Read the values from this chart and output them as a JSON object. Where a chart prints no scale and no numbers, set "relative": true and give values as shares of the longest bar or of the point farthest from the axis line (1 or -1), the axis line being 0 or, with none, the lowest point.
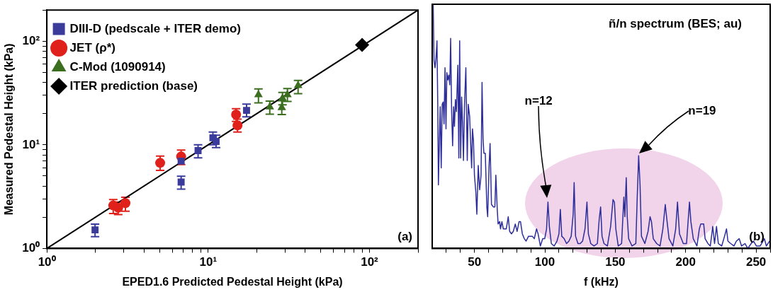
{
  "chart_data": [
    {
      "type": "scatter",
      "xlabel": "EPED1.6 Predicted Pedestal Height (kPa)",
      "ylabel": "Measured Pedestal Height (kPa)",
      "log": "xy",
      "xlim": [
        1,
        200
      ],
      "ylim": [
        1,
        200
      ],
      "xticks": [
        {
          "value": 1,
          "label": "10⁰"
        },
        {
          "value": 2,
          "label": null
        },
        {
          "value": 3,
          "label": null
        },
        {
          "value": 4,
          "label": null
        },
        {
          "value": 5,
          "label": null
        },
        {
          "value": 6,
          "label": null
        },
        {
          "value": 7,
          "label": null
        },
        {
          "value": 8,
          "label": null
        },
        {
          "value": 9,
          "label": null
        },
        {
          "value": 10,
          "label": "10¹"
        },
        {
          "value": 20,
          "label": null
        },
        {
          "value": 30,
          "label": null
        },
        {
          "value": 40,
          "label": null
        },
        {
          "value": 50,
          "label": null
        },
        {
          "value": 60,
          "label": null
        },
        {
          "value": 70,
          "label": null
        },
        {
          "value": 80,
          "label": null
        },
        {
          "value": 90,
          "label": null
        },
        {
          "value": 100,
          "label": "10²"
        },
        {
          "value": 200,
          "label": null
        }
      ],
      "yticks": [
        {
          "value": 1,
          "label": "10⁰"
        },
        {
          "value": 2,
          "label": null
        },
        {
          "value": 3,
          "label": null
        },
        {
          "value": 4,
          "label": null
        },
        {
          "value": 5,
          "label": null
        },
        {
          "value": 6,
          "label": null
        },
        {
          "value": 7,
          "label": null
        },
        {
          "value": 8,
          "label": null
        },
        {
          "value": 9,
          "label": null
        },
        {
          "value": 10,
          "label": "10¹"
        },
        {
          "value": 20,
          "label": null
        },
        {
          "value": 30,
          "label": null
        },
        {
          "value": 40,
          "label": null
        },
        {
          "value": 50,
          "label": null
        },
        {
          "value": 60,
          "label": null
        },
        {
          "value": 70,
          "label": null
        },
        {
          "value": 80,
          "label": null
        },
        {
          "value": 90,
          "label": null
        },
        {
          "value": 100,
          "label": "10²"
        },
        {
          "value": 200,
          "label": null
        }
      ],
      "legend": "top left",
      "annotations": [
        "(a)"
      ],
      "series": [
        {
          "name": "DIII-D (pedscale + ITER demo)",
          "color": "#3b3b9c",
          "marker": "square",
          "x": [
            1.99,
            6.8,
            6.8,
            8.66,
            10.7,
            11.2,
            17.3
          ],
          "values": [
            1.51,
            4.37,
            6.96,
            8.79,
            11.7,
            10.8,
            21.5
          ],
          "errors": [
            [
              1.3,
              1.72
            ],
            [
              3.74,
              4.97
            ],
            null,
            [
              7.5,
              10
            ],
            [
              10,
              13.3
            ],
            [
              9.4,
              12.4
            ],
            [
              18.6,
              24.7
            ]
          ]
        },
        {
          "name": "JET (ρ*)",
          "color": "#e0201b",
          "marker": "circle",
          "x": [
            5.04,
            6.8,
            2.58,
            2.77,
            3.07,
            14.9,
            15.2
          ],
          "values": [
            6.7,
            7.72,
            2.6,
            2.47,
            2.74,
            19.6,
            15.4
          ],
          "errors": [
            [
              5.66,
              7.8
            ],
            [
              6.44,
              8.9
            ],
            [
              2.17,
              2.96
            ],
            [
              2.12,
              2.81
            ],
            [
              2.29,
              3.12
            ],
            [
              16.8,
              22.3
            ],
            [
              13.3,
              17.7
            ]
          ]
        },
        {
          "name": "C-Mod (1090914)",
          "color": "#3c6e20",
          "marker": "triangle",
          "x": [
            20.5,
            24.1,
            28.6,
            28.9,
            31,
            36.1
          ],
          "values": [
            30.4,
            23.2,
            22.9,
            28.1,
            30.4,
            37.4
          ],
          "errors": [
            [
              25.4,
              34.6
            ],
            [
              19.8,
              26.4
            ],
            [
              19.6,
              26.6
            ],
            [
              24.3,
              32.1
            ],
            [
              26.2,
              34.9
            ],
            [
              31.2,
              41.9
            ]
          ]
        },
        {
          "name": "ITER prediction (base)",
          "color": "#000000",
          "marker": "diamond",
          "x": [
            90
          ],
          "values": [
            92
          ]
        },
        {
          "type": "line",
          "color": "#000000",
          "marker": "none",
          "x": [
            1,
            200
          ],
          "values": [
            1,
            200
          ]
        }
      ]
    },
    {
      "type": "line",
      "title": "ñ/n spectrum (BES; au)",
      "xlabel": "f (kHz)",
      "relative": true,
      "xlim": [
        20,
        260
      ],
      "xticks": [
        {
          "value": 30,
          "label": null
        },
        {
          "value": 40,
          "label": null
        },
        50,
        {
          "value": 60,
          "label": null
        },
        {
          "value": 70,
          "label": null
        },
        {
          "value": 80,
          "label": null
        },
        {
          "value": 90,
          "label": null
        },
        100,
        {
          "value": 110,
          "label": null
        },
        {
          "value": 120,
          "label": null
        },
        {
          "value": 130,
          "label": null
        },
        {
          "value": 140,
          "label": null
        },
        150,
        {
          "value": 160,
          "label": null
        },
        {
          "value": 170,
          "label": null
        },
        {
          "value": 180,
          "label": null
        },
        {
          "value": 190,
          "label": null
        },
        200,
        {
          "value": 210,
          "label": null
        },
        {
          "value": 220,
          "label": null
        },
        {
          "value": 230,
          "label": null
        },
        {
          "value": 240,
          "label": null
        },
        250,
        {
          "value": 260,
          "label": null
        }
      ],
      "annotations": [
        "n=12",
        "n=19",
        "(b)"
      ],
      "series": [
        {
          "color": "#2e2e9a",
          "x": [
            20.7,
            21.3,
            22.0,
            22.7,
            23.4,
            24.0,
            24.4,
            25.1,
            25.7,
            26.4,
            27.1,
            27.8,
            28.4,
            29.1,
            29.8,
            30.4,
            31.1,
            31.8,
            32.5,
            33.1,
            33.8,
            34.5,
            35.2,
            35.8,
            36.5,
            37.2,
            38.2,
            38.9,
            39.5,
            40.2,
            40.9,
            41.5,
            42.2,
            42.9,
            43.9,
            44.9,
            45.6,
            46.6,
            47.3,
            48.0,
            48.6,
            49.3,
            50.0,
            51.0,
            51.7,
            52.7,
            53.7,
            54.7,
            55.4,
            56.1,
            56.7,
            57.7,
            58.8,
            59.4,
            60.4,
            61.1,
            62.1,
            63.5,
            64.5,
            65.2,
            66.2,
            66.8,
            67.9,
            68.5,
            69.5,
            70.5,
            71.6,
            72.6,
            74.0,
            75.0,
            76.3,
            77.6,
            79.0,
            80.3,
            81.7,
            82.7,
            84.0,
            85.4,
            86.7,
            88.4,
            89.8,
            91.1,
            92.5,
            94.1,
            95.2,
            96.8,
            98.5,
            99.9,
            101.2,
            102.2,
            103.2,
            104.6,
            106.6,
            108.6,
            110.0,
            111.0,
            112.0,
            113.7,
            115.4,
            117.1,
            118.7,
            120.1,
            120.8,
            121.8,
            123.5,
            125.1,
            126.8,
            128.5,
            129.9,
            130.9,
            132.6,
            134.9,
            137.3,
            138.6,
            139.6,
            140.6,
            142.0,
            144.4,
            146.7,
            148.4,
            149.4,
            150.4,
            152.1,
            154.5,
            156.1,
            156.8,
            157.8,
            158.5,
            159.5,
            161.9,
            164.6,
            165.6,
            166.6,
            167.6,
            168.6,
            171.0,
            173.3,
            174.7,
            175.7,
            177.0,
            179.4,
            181.8,
            183.8,
            185.5,
            186.8,
            188.2,
            190.9,
            192.9,
            194.2,
            195.6,
            198.3,
            200.6,
            202.7,
            203.7,
            205.4,
            208.0,
            209.7,
            210.7,
            212.8,
            213.8,
            215.8,
            217.5,
            219.2,
            220.5,
            221.9,
            223.2,
            225.6,
            227.6,
            229.0,
            230.0,
            232.0,
            234.3,
            236.0,
            238.0,
            239.7,
            242.1,
            244.1,
            246.5,
            248.2,
            250.2,
            252.9,
            255.9,
            257.3,
            259.6
          ],
          "values": [
            1.0,
            0.77,
            0.74,
            0.78,
            0.85,
            0.56,
            0.26,
            0.44,
            0.58,
            0.33,
            0.59,
            0.6,
            0.51,
            0.74,
            0.49,
            0.72,
            0.69,
            0.71,
            0.67,
            0.86,
            0.56,
            0.42,
            0.58,
            0.5,
            0.61,
            0.56,
            0.75,
            0.37,
            0.85,
            0.37,
            0.62,
            0.52,
            0.36,
            0.58,
            0.74,
            0.36,
            0.59,
            0.54,
            0.43,
            0.33,
            0.49,
            0.44,
            0.3,
            0.23,
            0.14,
            0.34,
            0.24,
            0.3,
            0.68,
            0.45,
            0.39,
            0.39,
            0.17,
            0.13,
            0.34,
            0.43,
            0.18,
            0.17,
            0.17,
            0.3,
            0.16,
            0.1,
            0.11,
            0.08,
            0.11,
            0.08,
            0.08,
            0.08,
            0.13,
            0.07,
            0.06,
            0.07,
            0.1,
            0.07,
            0.11,
            0.11,
            0.06,
            0.04,
            0.03,
            0.05,
            0.05,
            0.05,
            0.04,
            0.08,
            0.06,
            0.01,
            0.04,
            0.04,
            0.08,
            0.19,
            0.09,
            0.02,
            0.01,
            0.03,
            0.06,
            0.16,
            0.05,
            0.04,
            0.02,
            0.03,
            0.05,
            0.14,
            0.27,
            0.05,
            0.02,
            0.02,
            0.03,
            0.08,
            0.19,
            0.06,
            0.02,
            0.01,
            0.02,
            0.12,
            0.17,
            0.05,
            0.02,
            0.01,
            0.09,
            0.2,
            0.19,
            0.08,
            0.01,
            0.02,
            0.21,
            0.13,
            0.29,
            0.13,
            0.04,
            0.01,
            0.02,
            0.21,
            0.38,
            0.26,
            0.05,
            0.02,
            0.07,
            0.13,
            0.11,
            0.04,
            0.02,
            0.01,
            0.08,
            0.18,
            0.11,
            0.04,
            0.01,
            0.08,
            0.19,
            0.06,
            0.02,
            0.02,
            0.19,
            0.11,
            0.04,
            0.01,
            0.08,
            0.1,
            0.1,
            0.04,
            0.02,
            0.01,
            0.09,
            0.02,
            0.09,
            0.02,
            0.01,
            0.05,
            0.08,
            0.03,
            0.02,
            0.01,
            0.03,
            0.04,
            0.01,
            0.02,
            0.0,
            0.02,
            0.03,
            0.01,
            0.01,
            0.04,
            0.01,
            0.03
          ]
        }
      ]
    }
  ]
}
